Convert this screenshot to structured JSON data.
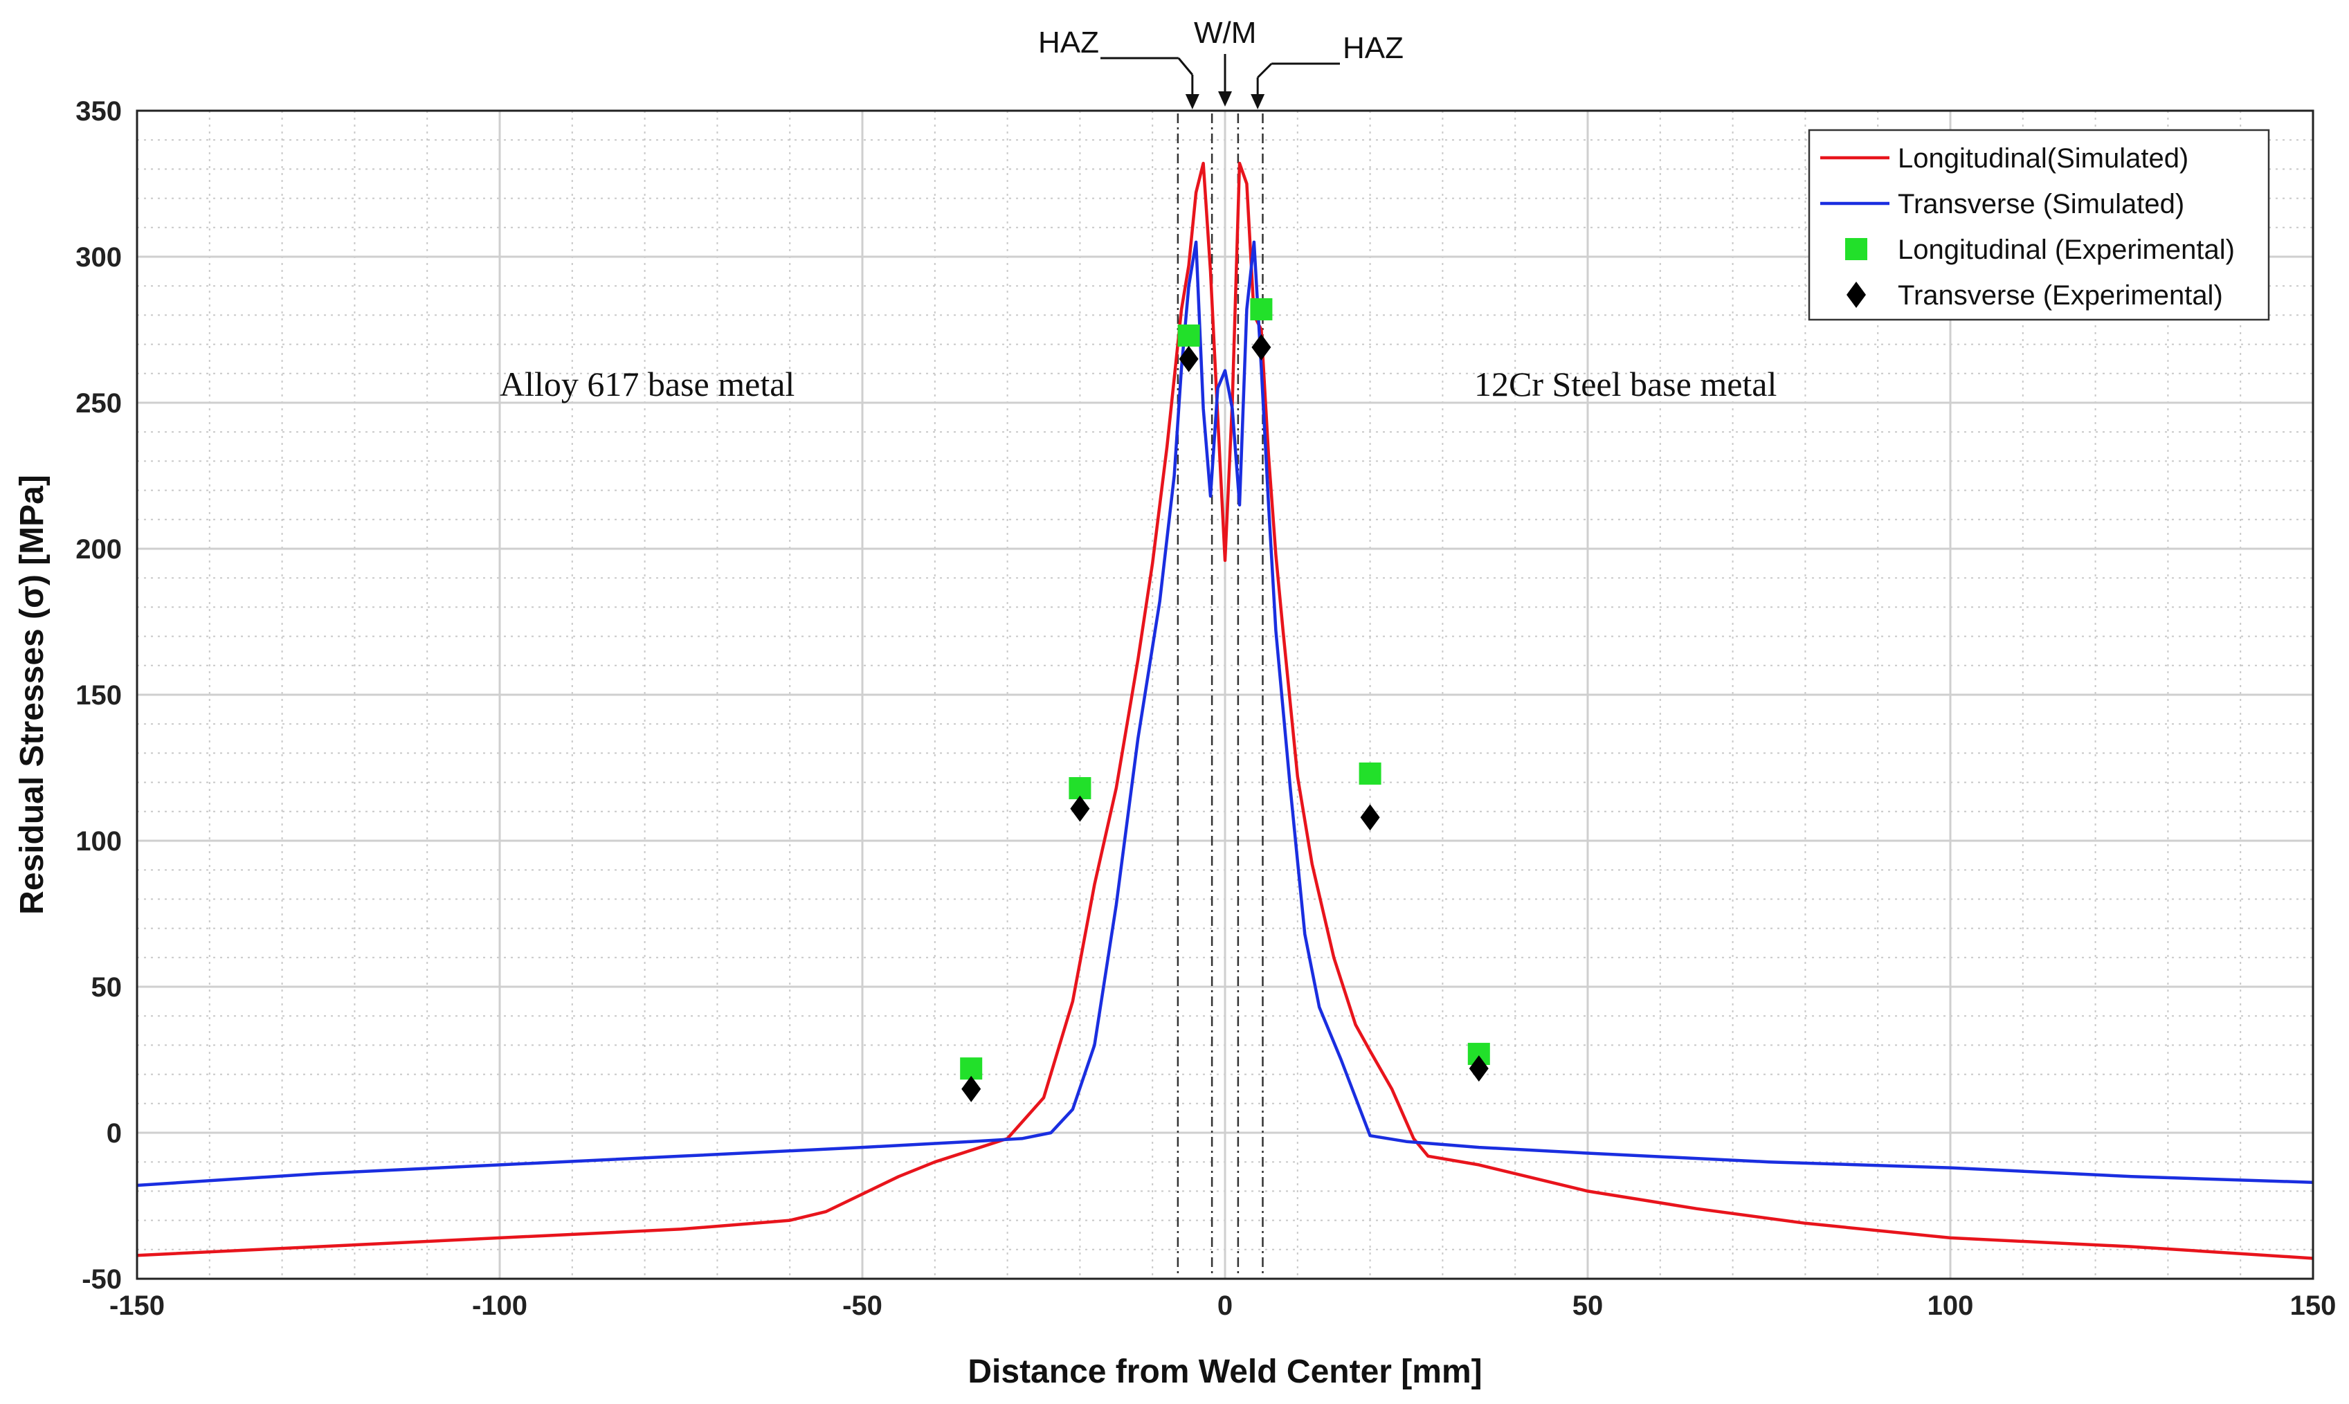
{
  "chart_data": {
    "type": "line",
    "title": "",
    "xlabel": "Distance from Weld Center [mm]",
    "ylabel": "Residual Stresses (σ) [MPa]",
    "xlim": [
      -150,
      150
    ],
    "ylim": [
      -50,
      350
    ],
    "xticks": [
      -150,
      -100,
      -50,
      0,
      50,
      100,
      150
    ],
    "yticks": [
      -50,
      0,
      50,
      100,
      150,
      200,
      250,
      300,
      350
    ],
    "grid": true,
    "legend_position": "top-right",
    "series": [
      {
        "name": "Longitudinal(Simulated)",
        "kind": "line",
        "color": "#e8141c",
        "points": [
          [
            -150,
            -42
          ],
          [
            -125,
            -39
          ],
          [
            -100,
            -36
          ],
          [
            -75,
            -33
          ],
          [
            -60,
            -30
          ],
          [
            -55,
            -27
          ],
          [
            -50,
            -21
          ],
          [
            -45,
            -15
          ],
          [
            -40,
            -10
          ],
          [
            -35,
            -6
          ],
          [
            -30,
            -2
          ],
          [
            -25,
            12
          ],
          [
            -21,
            45
          ],
          [
            -18,
            85
          ],
          [
            -15,
            118
          ],
          [
            -12,
            162
          ],
          [
            -10,
            195
          ],
          [
            -8,
            235
          ],
          [
            -6,
            282
          ],
          [
            -5,
            297
          ],
          [
            -4,
            322
          ],
          [
            -3,
            332
          ],
          [
            -2,
            295
          ],
          [
            -1,
            245
          ],
          [
            0,
            196
          ],
          [
            1,
            250
          ],
          [
            2,
            332
          ],
          [
            3,
            325
          ],
          [
            4,
            280
          ],
          [
            5,
            275
          ],
          [
            6,
            232
          ],
          [
            7,
            198
          ],
          [
            8,
            172
          ],
          [
            10,
            122
          ],
          [
            12,
            92
          ],
          [
            15,
            60
          ],
          [
            18,
            37
          ],
          [
            20,
            28
          ],
          [
            23,
            15
          ],
          [
            26,
            -2
          ],
          [
            28,
            -8
          ],
          [
            35,
            -11
          ],
          [
            50,
            -20
          ],
          [
            65,
            -26
          ],
          [
            80,
            -31
          ],
          [
            100,
            -36
          ],
          [
            125,
            -39
          ],
          [
            150,
            -43
          ]
        ]
      },
      {
        "name": "Transverse (Simulated)",
        "kind": "line",
        "color": "#1a2ee0",
        "points": [
          [
            -150,
            -18
          ],
          [
            -125,
            -14
          ],
          [
            -100,
            -11
          ],
          [
            -75,
            -8
          ],
          [
            -50,
            -5
          ],
          [
            -35,
            -3
          ],
          [
            -28,
            -2
          ],
          [
            -24,
            0
          ],
          [
            -21,
            8
          ],
          [
            -18,
            30
          ],
          [
            -15,
            78
          ],
          [
            -12,
            135
          ],
          [
            -9,
            182
          ],
          [
            -7,
            225
          ],
          [
            -6,
            262
          ],
          [
            -5,
            290
          ],
          [
            -4,
            305
          ],
          [
            -3,
            248
          ],
          [
            -2,
            218
          ],
          [
            -1,
            255
          ],
          [
            0,
            261
          ],
          [
            1,
            248
          ],
          [
            2,
            215
          ],
          [
            3,
            282
          ],
          [
            4,
            305
          ],
          [
            5,
            262
          ],
          [
            6,
            215
          ],
          [
            7,
            172
          ],
          [
            9,
            118
          ],
          [
            11,
            68
          ],
          [
            13,
            43
          ],
          [
            16,
            25
          ],
          [
            20,
            -1
          ],
          [
            25,
            -3
          ],
          [
            35,
            -5
          ],
          [
            50,
            -7
          ],
          [
            75,
            -10
          ],
          [
            100,
            -12
          ],
          [
            125,
            -15
          ],
          [
            150,
            -17
          ]
        ]
      },
      {
        "name": "Longitudinal (Experimental)",
        "kind": "marker",
        "marker": "square",
        "color": "#22e02a",
        "points": [
          [
            -35,
            22
          ],
          [
            -20,
            118
          ],
          [
            -5,
            273
          ],
          [
            5,
            282
          ],
          [
            20,
            123
          ],
          [
            35,
            27
          ]
        ]
      },
      {
        "name": "Transverse (Experimental)",
        "kind": "marker",
        "marker": "diamond",
        "color": "#000000",
        "points": [
          [
            -35,
            15
          ],
          [
            -20,
            111
          ],
          [
            -5,
            265
          ],
          [
            5,
            269
          ],
          [
            20,
            108
          ],
          [
            35,
            22
          ]
        ]
      }
    ],
    "zone_lines_x": [
      -6.5,
      -1.8,
      1.8,
      5.2
    ],
    "annotations": {
      "haz_left": "HAZ",
      "weld_metal": "W/M",
      "haz_right": "HAZ",
      "left_region": "Alloy 617 base metal",
      "right_region": "12Cr Steel base metal"
    }
  }
}
